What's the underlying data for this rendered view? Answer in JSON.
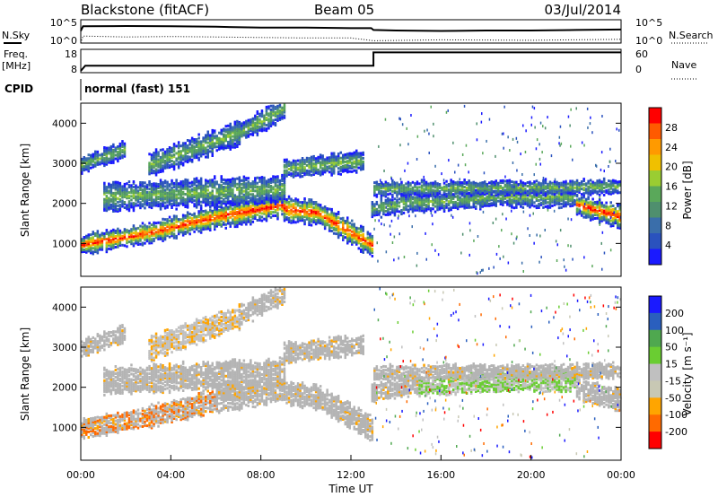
{
  "header": {
    "station": "Blackstone (fitACF)",
    "beam": "Beam 05",
    "date": "03/Jul/2014"
  },
  "colors": {
    "power_palette": [
      "#1a1aff",
      "#2a52be",
      "#3a6eaa",
      "#4f8f6e",
      "#5aa85a",
      "#9acd32",
      "#f0c000",
      "#ff9a00",
      "#ff5a00",
      "#ff0000"
    ],
    "velocity_palette": [
      "#ff0000",
      "#ff6a00",
      "#ffa500",
      "#c8c8b4",
      "#c0c0c0",
      "#6acd32",
      "#4fa84f",
      "#2a5fbe",
      "#1a1aff"
    ],
    "ground_scatter": "#b4b4b4"
  },
  "chart_data": [
    {
      "type": "line",
      "name": "noise-panel",
      "left_label": "N.Sky",
      "right_label": "N.Search",
      "left_ticks": [
        "10^5",
        "10^0"
      ],
      "right_ticks": [
        "10^5",
        "10^0"
      ],
      "series": [
        {
          "x": [
            0,
            0.1,
            2,
            4,
            6,
            8,
            10,
            12,
            12.9,
            13,
            14,
            16,
            18,
            20,
            22,
            24
          ],
          "values": [
            2.6,
            3.6,
            3.65,
            3.6,
            3.5,
            3.3,
            3.3,
            3.2,
            3.2,
            2.8,
            2.7,
            2.6,
            2.7,
            2.7,
            2.8,
            2.9
          ]
        },
        {
          "x": [
            0,
            0.1,
            2,
            4,
            6,
            8,
            10,
            12,
            13,
            16,
            20,
            24
          ],
          "values": [
            0,
            1.5,
            1.3,
            1.4,
            1.3,
            1.2,
            1.1,
            1.1,
            0.5,
            0.7,
            0.6,
            0.8
          ]
        }
      ]
    },
    {
      "type": "line",
      "name": "frequency-panel",
      "left_label_1": "Freq.",
      "left_label_2": "[MHz]",
      "right_label": "Nave",
      "left_ticks": [
        "18",
        "8"
      ],
      "right_ticks": [
        "60",
        "0"
      ],
      "series": [
        {
          "x": [
            0,
            0.2,
            13,
            13,
            24
          ],
          "values": [
            8,
            10.5,
            10.5,
            16.8,
            16.8
          ]
        }
      ]
    },
    {
      "type": "table",
      "name": "cpid-panel",
      "label": "CPID",
      "program": "normal (fast) 151"
    },
    {
      "type": "heatmap",
      "name": "power-panel",
      "ylabel": "Slant Range [km]",
      "xlim": [
        0,
        24
      ],
      "ylim": [
        180,
        4500
      ],
      "yticks": [
        1000,
        2000,
        3000,
        4000
      ],
      "colorbar_label": "Power [dB]",
      "colorbar_ticks": [
        4,
        8,
        12,
        16,
        20,
        24,
        28
      ],
      "colorbar_range": [
        0,
        30
      ]
    },
    {
      "type": "heatmap",
      "name": "velocity-panel",
      "ylabel": "Slant Range [km]",
      "xlabel": "Time UT",
      "xlim": [
        0,
        24
      ],
      "ylim": [
        180,
        4500
      ],
      "yticks": [
        1000,
        2000,
        3000,
        4000
      ],
      "xticks": [
        "00:00",
        "04:00",
        "08:00",
        "12:00",
        "16:00",
        "20:00",
        "00:00"
      ],
      "colorbar_label": "Velocity [m s⁻¹]",
      "colorbar_ticks": [
        "-200",
        "-100",
        "-50",
        "-15",
        "15",
        "50",
        "100",
        "200"
      ]
    }
  ]
}
